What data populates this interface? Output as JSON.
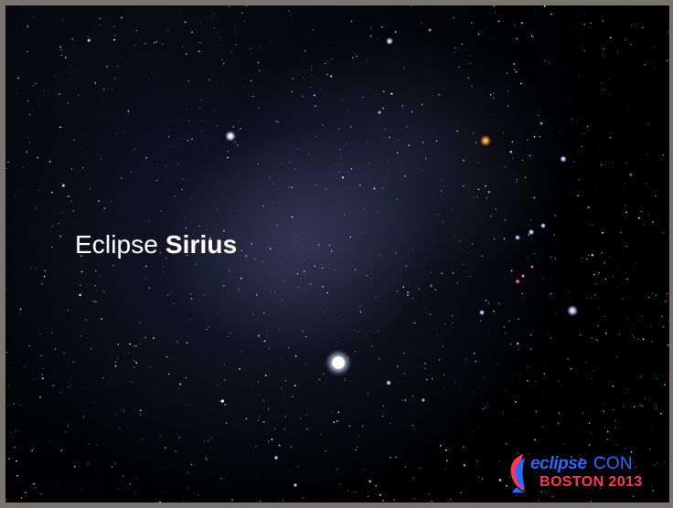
{
  "slide": {
    "title_prefix": "Eclipse",
    "title_emphasis": "Sirius"
  },
  "logo": {
    "eclipse_text": "eclipse",
    "con_text": "CON",
    "location_text": "BOSTON 2013"
  },
  "colors": {
    "background": "#02030a",
    "logo_blue": "#2f66ff",
    "logo_red": "#ff3a4f",
    "frame": "#7a746f"
  }
}
